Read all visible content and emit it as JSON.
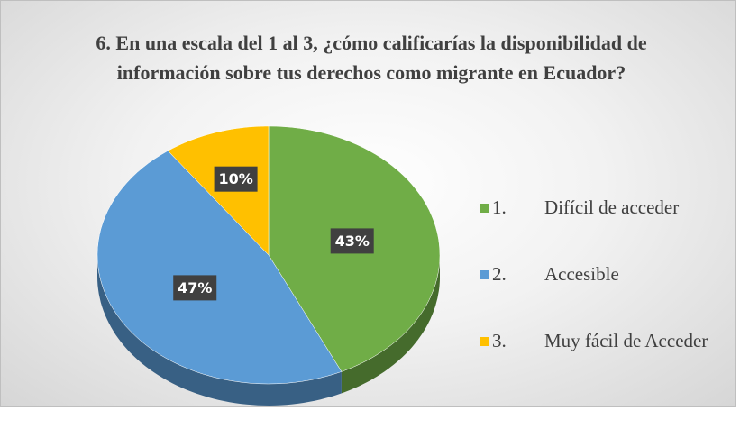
{
  "chart_data": {
    "type": "pie3d",
    "title": "6. En una escala del 1 al 3, ¿cómo calificarías la disponibilidad de información sobre tus derechos como migrante en Ecuador?",
    "categories": [
      "1.\tDifícil de acceder",
      "2.\tAccesible",
      "3.\tMuy fácil de Acceder"
    ],
    "values": [
      43,
      47,
      10
    ],
    "value_labels": [
      "43%",
      "47%",
      "10%"
    ],
    "colors": [
      "#70ad47",
      "#5b9bd5",
      "#ffc000"
    ],
    "legend": "right"
  }
}
